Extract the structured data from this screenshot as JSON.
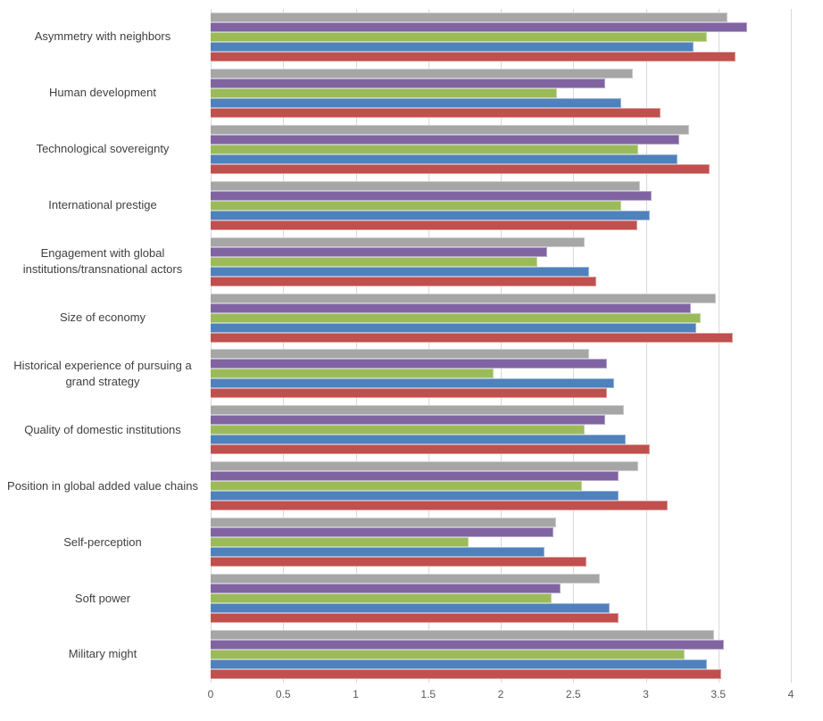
{
  "page": {
    "background": "#FFFFFF"
  },
  "chart_data": {
    "type": "bar",
    "orientation": "horizontal",
    "title": "",
    "xlabel": "",
    "ylabel": "",
    "xlim": [
      0,
      4
    ],
    "x_ticks": [
      0,
      0.5,
      1,
      1.5,
      2,
      2.5,
      3,
      3.5,
      4
    ],
    "x_tick_labels": [
      "0",
      "0.5",
      "1",
      "1.5",
      "2",
      "2.5",
      "3",
      "3.5",
      "4"
    ],
    "grid": "vertical-only",
    "legend": "none",
    "categories": [
      "Asymmetry with neighbors",
      "Human development",
      "Technological sovereignty",
      "International prestige",
      "Engagement with global institutions/transnational actors",
      "Size of economy",
      "Historical experience of pursuing a grand strategy",
      "Quality of domestic institutions",
      "Position in global added value chains",
      "Self-perception",
      "Soft power",
      "Military might"
    ],
    "series": [
      {
        "name": "gray",
        "color": "#A6A6A6",
        "values": [
          3.56,
          2.91,
          3.3,
          2.96,
          2.58,
          3.48,
          2.61,
          2.85,
          2.95,
          2.38,
          2.68,
          3.47
        ]
      },
      {
        "name": "purple",
        "color": "#8064A2",
        "values": [
          3.7,
          2.72,
          3.23,
          3.04,
          2.32,
          3.31,
          2.73,
          2.72,
          2.81,
          2.36,
          2.41,
          3.54
        ]
      },
      {
        "name": "green",
        "color": "#9BBB59",
        "values": [
          3.42,
          2.39,
          2.95,
          2.83,
          2.25,
          3.38,
          1.95,
          2.58,
          2.56,
          1.78,
          2.35,
          3.27
        ]
      },
      {
        "name": "blue",
        "color": "#4F81BD",
        "values": [
          3.33,
          2.83,
          3.22,
          3.03,
          2.61,
          3.35,
          2.78,
          2.86,
          2.81,
          2.3,
          2.75,
          3.42
        ]
      },
      {
        "name": "red",
        "color": "#C0504D",
        "values": [
          3.62,
          3.1,
          3.44,
          2.94,
          2.66,
          3.6,
          2.73,
          3.03,
          3.15,
          2.59,
          2.81,
          3.52
        ]
      }
    ],
    "colors": {
      "gridline": "#D9D9D9",
      "tick_text": "#595959",
      "category_text": "#3F3F3F"
    }
  }
}
